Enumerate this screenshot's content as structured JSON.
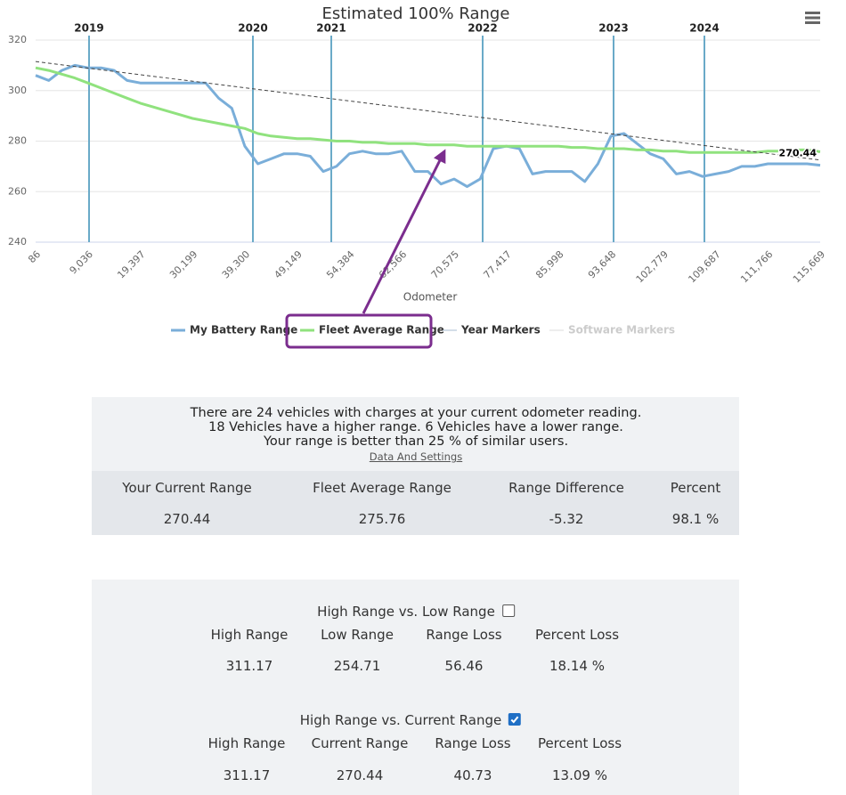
{
  "chart_data": {
    "type": "line",
    "title": "Estimated 100% Range",
    "x_label": "Odometer",
    "categories": [
      "86",
      null,
      null,
      null,
      "9,036",
      null,
      null,
      null,
      "19,397",
      null,
      null,
      null,
      "30,199",
      null,
      null,
      null,
      "39,300",
      null,
      null,
      null,
      "49,149",
      null,
      null,
      null,
      "54,384",
      null,
      null,
      null,
      "62,566",
      null,
      null,
      null,
      "70,575",
      null,
      null,
      null,
      "77,417",
      null,
      null,
      null,
      "85,998",
      null,
      null,
      null,
      "93,648",
      null,
      null,
      null,
      "102,779",
      null,
      null,
      null,
      "109,687",
      null,
      null,
      null,
      "111,766",
      null,
      null,
      null,
      "115,669"
    ],
    "ylim": [
      240,
      320
    ],
    "yticks": [
      240,
      260,
      280,
      300,
      320
    ],
    "grid": true,
    "series": [
      {
        "name": "My Battery Range",
        "color": "#7aaed9",
        "values": [
          306,
          304,
          308,
          310,
          309,
          309,
          308,
          304,
          303,
          303,
          303,
          303,
          303,
          303,
          297,
          293,
          278,
          271,
          273,
          275,
          275,
          274,
          268,
          270,
          275,
          276,
          275,
          275,
          276,
          268,
          268,
          263,
          265,
          262,
          265,
          277,
          278,
          277,
          267,
          268,
          268,
          268,
          264,
          271,
          282,
          283,
          279,
          275,
          273,
          267,
          268,
          266,
          267,
          268,
          270,
          270,
          271,
          271,
          271,
          271,
          270.44
        ]
      },
      {
        "name": "Fleet Average Range",
        "color": "#90e27e",
        "values": [
          309,
          308,
          306.5,
          305,
          303,
          301,
          299,
          297,
          295,
          293.5,
          292,
          290.5,
          289,
          288,
          287,
          286,
          285,
          283,
          282,
          281.5,
          281,
          281,
          280.5,
          280,
          280,
          279.5,
          279.5,
          279,
          279,
          279,
          278.5,
          278.5,
          278.5,
          278,
          278,
          278,
          278,
          278,
          278,
          278,
          278,
          277.5,
          277.5,
          277,
          277,
          277,
          276.5,
          276.5,
          276,
          276,
          275.5,
          275.5,
          275.5,
          275.5,
          275.5,
          275.5,
          276,
          276,
          276.5,
          276.5,
          275.76
        ]
      }
    ],
    "trend": {
      "values": [
        311.5,
        272.5
      ]
    },
    "year_markers": {
      "name": "Year Markers",
      "color": "#6aaac8",
      "labels": [
        "2019",
        "2020",
        "2021",
        "2022",
        "2023",
        "2024"
      ]
    },
    "software_markers": {
      "name": "Software Markers",
      "hidden": true
    }
  },
  "summary": {
    "lines": [
      "There are 24 vehicles with charges at your current odometer reading.",
      "18 Vehicles have a higher range. 6 Vehicles have a lower range.",
      "Your range is better than 25 % of similar users."
    ],
    "link": "Data And Settings",
    "headers": [
      "Your Current Range",
      "Fleet Average Range",
      "Range Difference",
      "Percent"
    ],
    "values": [
      "270.44",
      "275.76",
      "-5.32",
      "98.1 %"
    ]
  },
  "comparisons": [
    {
      "title": "High Range vs. Low Range",
      "checked": false,
      "headers": [
        "High Range",
        "Low Range",
        "Range Loss",
        "Percent Loss"
      ],
      "values": [
        "311.17",
        "254.71",
        "56.46",
        "18.14 %"
      ]
    },
    {
      "title": "High Range vs. Current Range",
      "checked": true,
      "headers": [
        "High Range",
        "Current Range",
        "Range Loss",
        "Percent Loss"
      ],
      "values": [
        "311.17",
        "270.44",
        "40.73",
        "13.09 %"
      ]
    }
  ]
}
